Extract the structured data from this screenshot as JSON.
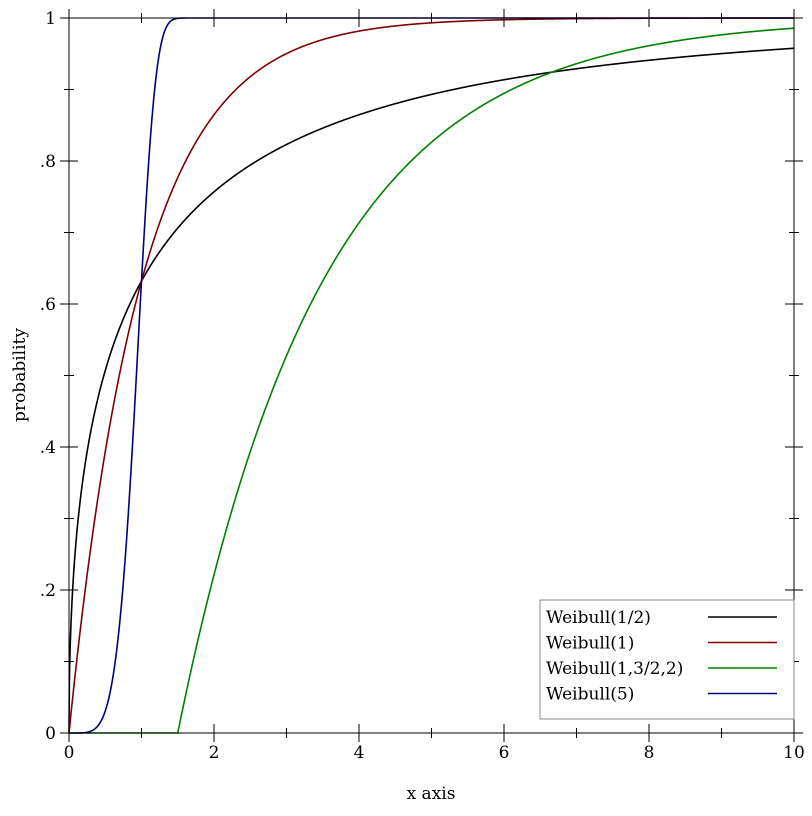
{
  "chart_data": {
    "type": "line",
    "xlabel": "x axis",
    "ylabel": "probability",
    "xlim": [
      0,
      10
    ],
    "ylim": [
      0,
      1
    ],
    "x_ticks": [
      0,
      2,
      4,
      6,
      8,
      10
    ],
    "x_tick_labels": [
      "0",
      "2",
      "4",
      "6",
      "8",
      "10"
    ],
    "x_minor_ticks": [
      1,
      3,
      5,
      7,
      9
    ],
    "y_ticks": [
      0,
      0.2,
      0.4,
      0.6,
      0.8,
      1
    ],
    "y_tick_labels": [
      "0",
      ".2",
      ".4",
      ".6",
      ".8",
      "1"
    ],
    "y_minor_ticks": [
      0.1,
      0.3,
      0.5,
      0.7,
      0.9
    ],
    "grid": false,
    "legend_position": "bottom-right",
    "x": [
      0,
      1,
      2,
      3,
      4,
      5,
      6,
      7,
      8,
      9,
      10
    ],
    "series": [
      {
        "name": "Weibull(1/2)",
        "color": "#000000",
        "distribution": {
          "scale": 1,
          "shape": 0.5,
          "shift": 0
        },
        "values": [
          0,
          0.632,
          0.757,
          0.823,
          0.865,
          0.893,
          0.914,
          0.929,
          0.941,
          0.95,
          0.958
        ]
      },
      {
        "name": "Weibull(1)",
        "color": "#800000",
        "distribution": {
          "scale": 1,
          "shape": 1,
          "shift": 0
        },
        "values": [
          0,
          0.632,
          0.865,
          0.95,
          0.982,
          0.993,
          0.998,
          0.999,
          1,
          1,
          1
        ]
      },
      {
        "name": "Weibull(1,3/2,2)",
        "color": "#008000",
        "distribution": {
          "scale": 2,
          "shape": 1,
          "shift": 1.5
        },
        "values": [
          0,
          0,
          0.221,
          0.528,
          0.713,
          0.826,
          0.895,
          0.936,
          0.961,
          0.976,
          0.986
        ]
      },
      {
        "name": "Weibull(5)",
        "color": "#000080",
        "distribution": {
          "scale": 1,
          "shape": 5,
          "shift": 0
        },
        "values": [
          0,
          0.632,
          1,
          1,
          1,
          1,
          1,
          1,
          1,
          1,
          1
        ]
      }
    ]
  }
}
